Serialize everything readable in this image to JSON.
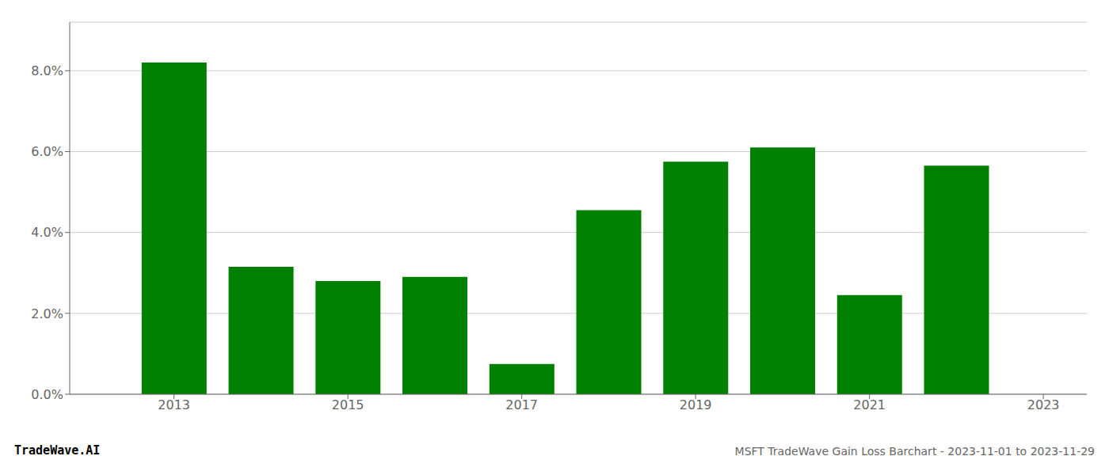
{
  "chart_data": {
    "type": "bar",
    "title": "MSFT TradeWave Gain Loss Barchart - 2023-11-01 to 2023-11-29",
    "annotations": [
      "TradeWave.AI"
    ],
    "x": [
      2013,
      2014,
      2015,
      2016,
      2017,
      2018,
      2019,
      2020,
      2021,
      2022
    ],
    "values": [
      0.082,
      0.0315,
      0.028,
      0.029,
      0.0075,
      0.0455,
      0.0575,
      0.061,
      0.0245,
      0.0565
    ],
    "color": "#008000",
    "xlim": [
      2011.8,
      2023.5
    ],
    "xticks": [
      2013,
      2015,
      2017,
      2019,
      2021,
      2023
    ],
    "ylim": [
      0,
      0.092
    ],
    "yticks": [
      {
        "value": 0.0,
        "label": "0.0%"
      },
      {
        "value": 0.02,
        "label": "2.0%"
      },
      {
        "value": 0.04,
        "label": "4.0%"
      },
      {
        "value": 0.06,
        "label": "6.0%"
      },
      {
        "value": 0.08,
        "label": "8.0%"
      }
    ],
    "grid": true
  }
}
